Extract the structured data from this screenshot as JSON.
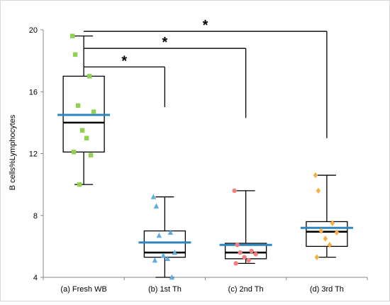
{
  "chart_data": {
    "type": "box",
    "title": "",
    "xlabel": "",
    "ylabel": "B cells%Lymphocytes",
    "ylim": [
      4,
      20
    ],
    "yticks": [
      "4",
      "8",
      "12",
      "16",
      "20"
    ],
    "categories": [
      "(a) Fresh WB",
      "(b) 1st Th",
      "(c) 2nd Th",
      "(d) 3rd Th"
    ],
    "colors": {
      "box": "#000000",
      "mean_line": "#2e86c1",
      "points": [
        "#92d050",
        "#5dade2",
        "#f08080",
        "#f5b041"
      ]
    },
    "point_markers": [
      "square",
      "triangle",
      "circle",
      "diamond"
    ],
    "groups": [
      {
        "name": "(a) Fresh WB",
        "min": 10.0,
        "q1": 12.1,
        "median": 14.0,
        "q3": 17.0,
        "max": 19.6,
        "mean": 14.5,
        "points": [
          19.6,
          18.4,
          17.0,
          15.1,
          14.7,
          13.5,
          13.0,
          12.1,
          11.9,
          10.0
        ]
      },
      {
        "name": "(b) 1st Th",
        "min": 4.0,
        "q1": 5.3,
        "median": 5.6,
        "q3": 7.0,
        "max": 9.2,
        "mean": 6.25,
        "points": [
          9.2,
          8.6,
          6.9,
          6.7,
          5.6,
          5.4,
          5.2,
          5.1,
          4.0
        ]
      },
      {
        "name": "(c) 2nd Th",
        "min": 4.9,
        "q1": 5.2,
        "median": 5.6,
        "q3": 6.2,
        "max": 9.6,
        "mean": 6.1,
        "points": [
          9.6,
          6.1,
          5.7,
          5.6,
          5.5,
          5.3,
          5.1,
          4.9
        ]
      },
      {
        "name": "(d) 3rd Th",
        "min": 5.3,
        "q1": 6.0,
        "median": 6.95,
        "q3": 7.6,
        "max": 10.6,
        "mean": 7.2,
        "points": [
          10.6,
          9.6,
          7.5,
          7.0,
          6.9,
          6.5,
          6.1,
          5.3
        ]
      }
    ],
    "significance": [
      {
        "from": "(a) Fresh WB",
        "to": "(b) 1st Th",
        "label": "*",
        "line_y": 17.6,
        "drop_to": 15.0
      },
      {
        "from": "(a) Fresh WB",
        "to": "(c) 2nd Th",
        "label": "*",
        "line_y": 18.8,
        "drop_to": 14.3
      },
      {
        "from": "(a) Fresh WB",
        "to": "(d) 3rd Th",
        "label": "*",
        "line_y": 19.9,
        "drop_to": 13.0
      }
    ]
  }
}
